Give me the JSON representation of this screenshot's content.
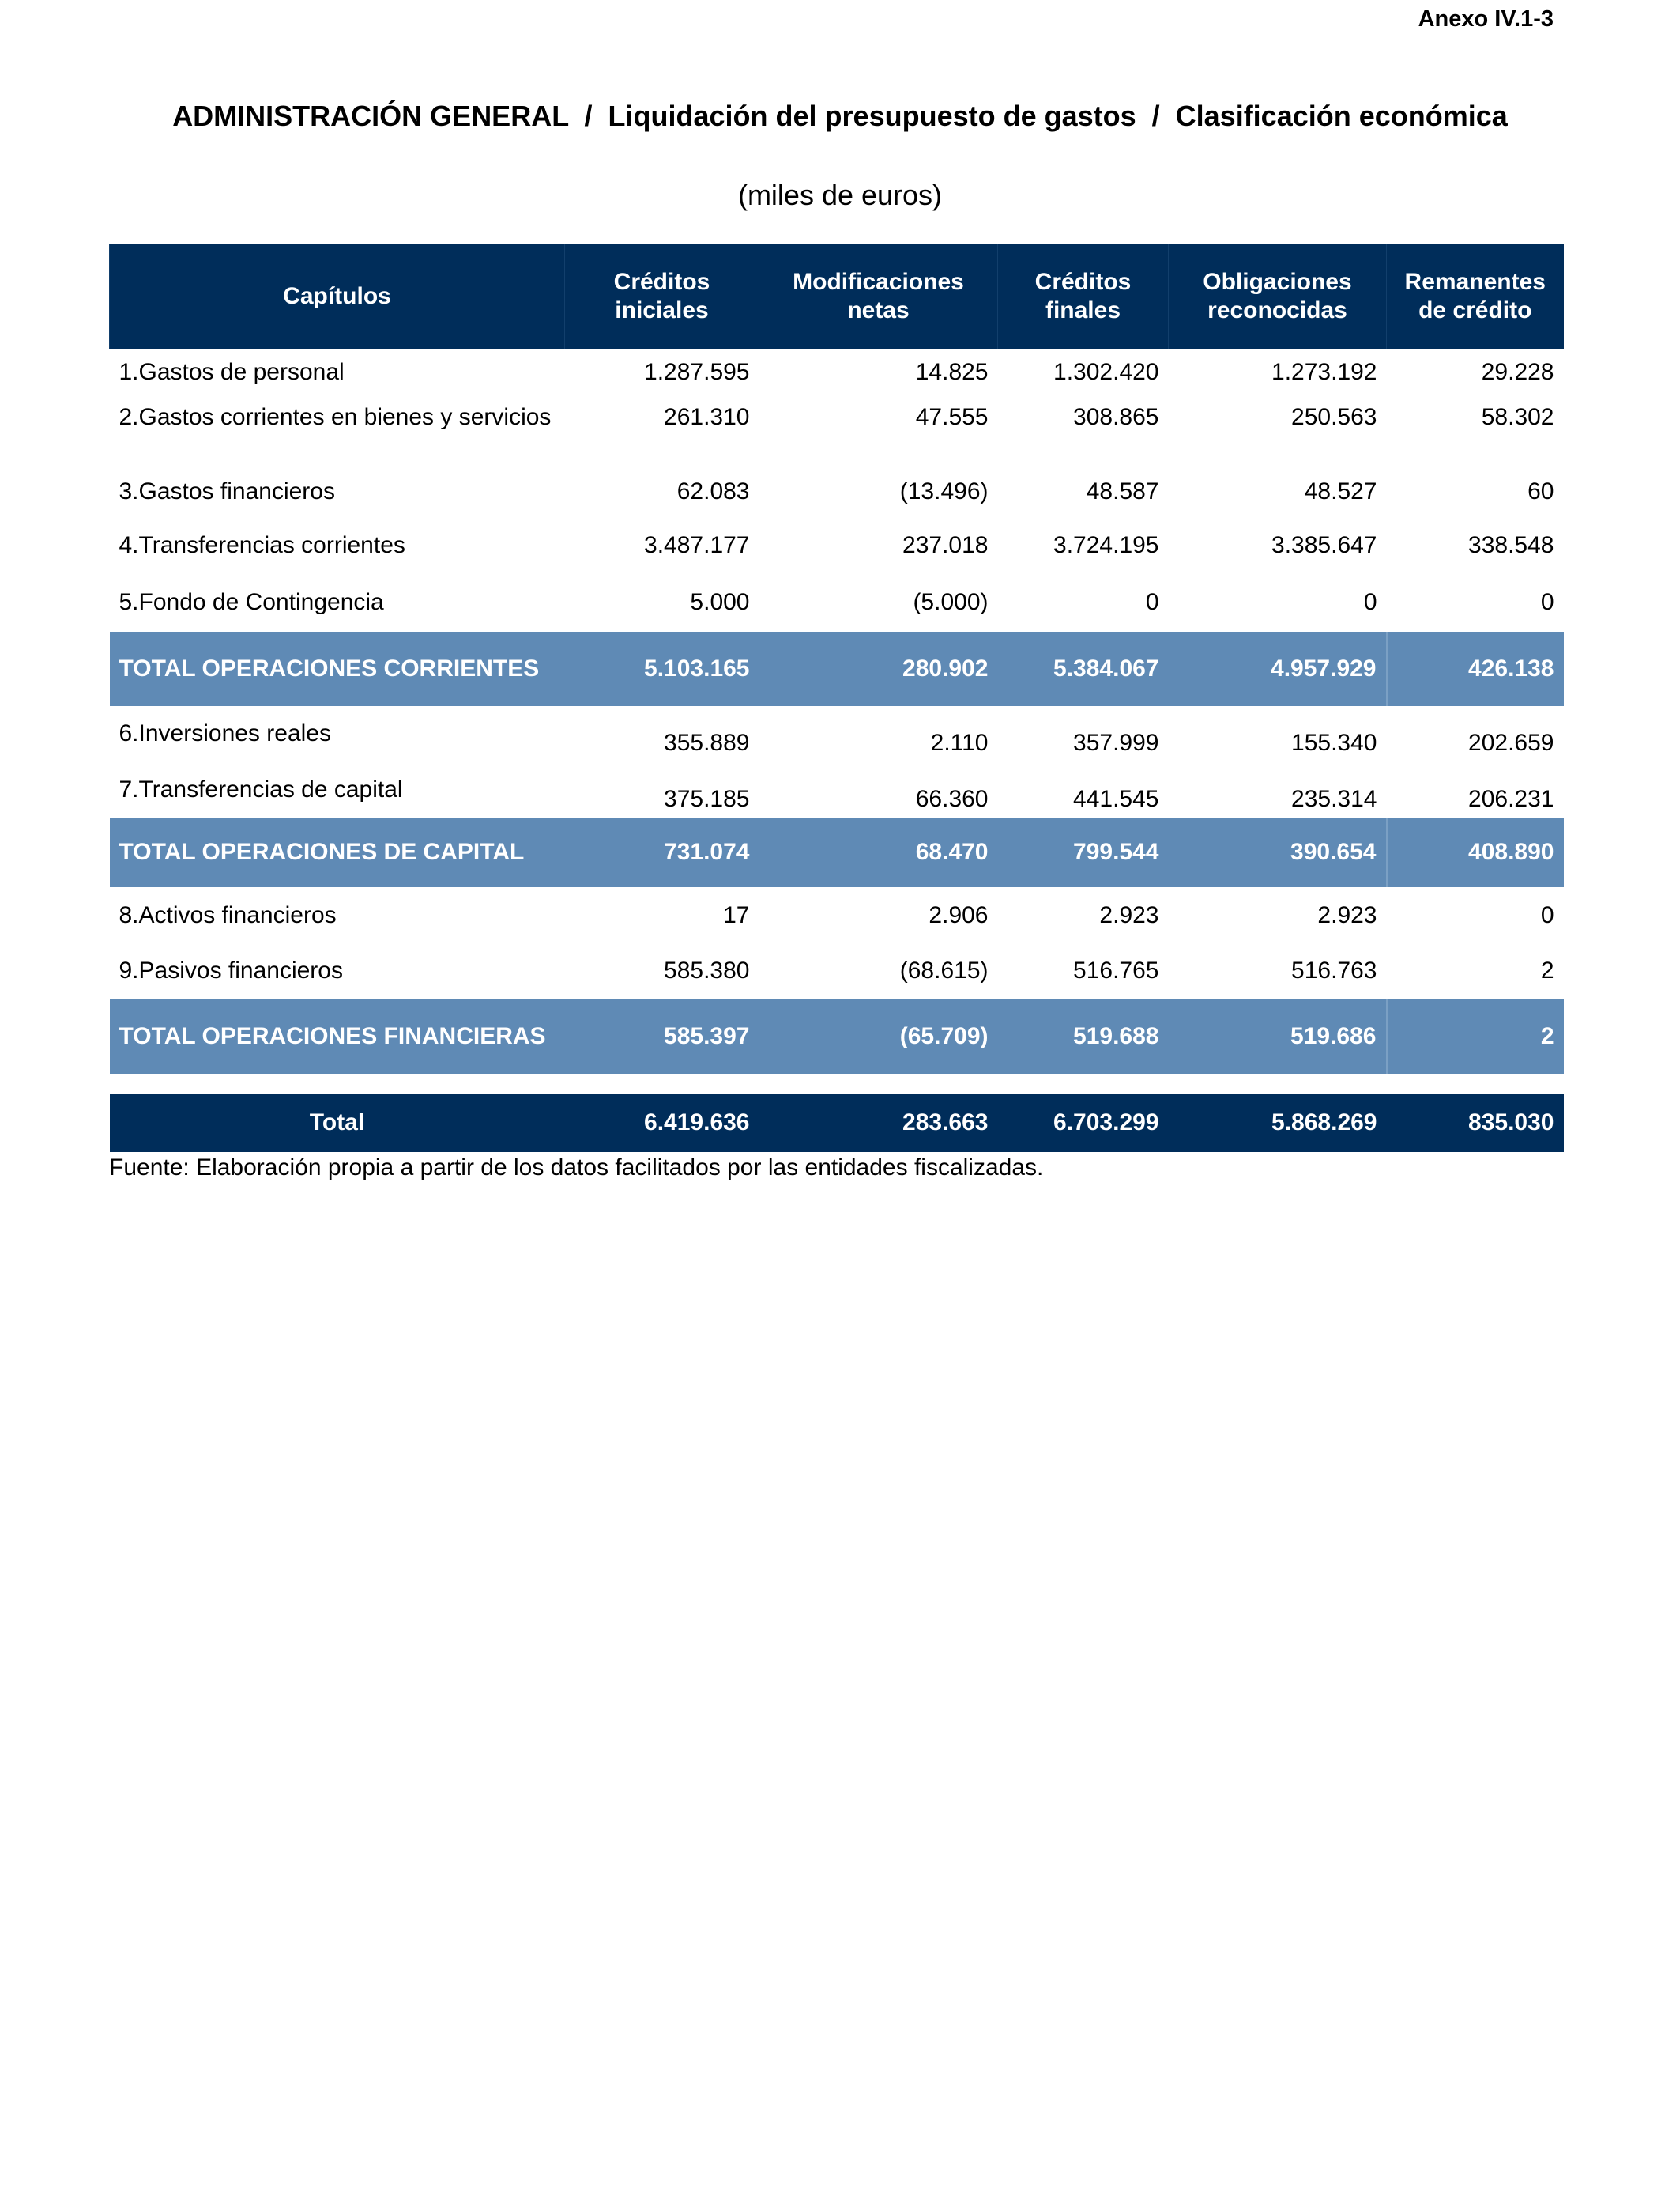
{
  "annex": "Anexo IV.1-3",
  "title": "ADMINISTRACIÓN GENERAL  /  Liquidación del presupuesto de gastos  /  Clasificación económica",
  "subtitle": "(miles de euros)",
  "colors": {
    "header": "#002d5a",
    "subtotal": "#5f8ab5"
  },
  "headers": [
    "Capítulos",
    "Créditos iniciales",
    "Modificaciones netas",
    "Créditos finales",
    "Obligaciones reconocidas",
    "Remanentes de crédito"
  ],
  "rows": [
    {
      "label": "1.Gastos de personal",
      "values": [
        "1.287.595",
        "14.825",
        "1.302.420",
        "1.273.192",
        "29.228"
      ]
    },
    {
      "label": "2.Gastos corrientes en bienes y servicios",
      "values": [
        "261.310",
        "47.555",
        "308.865",
        "250.563",
        "58.302"
      ]
    },
    {
      "label": "3.Gastos financieros",
      "values": [
        "62.083",
        "(13.496)",
        "48.587",
        "48.527",
        "60"
      ]
    },
    {
      "label": "4.Transferencias corrientes",
      "values": [
        "3.487.177",
        "237.018",
        "3.724.195",
        "3.385.647",
        "338.548"
      ]
    },
    {
      "label": "5.Fondo de Contingencia",
      "values": [
        "5.000",
        "(5.000)",
        "0",
        "0",
        "0"
      ]
    },
    {
      "label": "TOTAL OPERACIONES CORRIENTES",
      "values": [
        "5.103.165",
        "280.902",
        "5.384.067",
        "4.957.929",
        "426.138"
      ]
    },
    {
      "label": "6.Inversiones reales",
      "values": [
        "355.889",
        "2.110",
        "357.999",
        "155.340",
        "202.659"
      ]
    },
    {
      "label": "7.Transferencias de capital",
      "values": [
        "375.185",
        "66.360",
        "441.545",
        "235.314",
        "206.231"
      ]
    },
    {
      "label": "TOTAL OPERACIONES DE CAPITAL",
      "values": [
        "731.074",
        "68.470",
        "799.544",
        "390.654",
        "408.890"
      ]
    },
    {
      "label": "8.Activos financieros",
      "values": [
        "17",
        "2.906",
        "2.923",
        "2.923",
        "0"
      ]
    },
    {
      "label": "9.Pasivos financieros",
      "values": [
        "585.380",
        "(68.615)",
        "516.765",
        "516.763",
        "2"
      ]
    },
    {
      "label": "TOTAL OPERACIONES FINANCIERAS",
      "values": [
        "585.397",
        "(65.709)",
        "519.688",
        "519.686",
        "2"
      ]
    },
    {
      "label": "Total",
      "values": [
        "6.419.636",
        "283.663",
        "6.703.299",
        "5.868.269",
        "835.030"
      ]
    }
  ],
  "footnote": "Fuente: Elaboración propia a partir de los datos facilitados por las entidades fiscalizadas."
}
